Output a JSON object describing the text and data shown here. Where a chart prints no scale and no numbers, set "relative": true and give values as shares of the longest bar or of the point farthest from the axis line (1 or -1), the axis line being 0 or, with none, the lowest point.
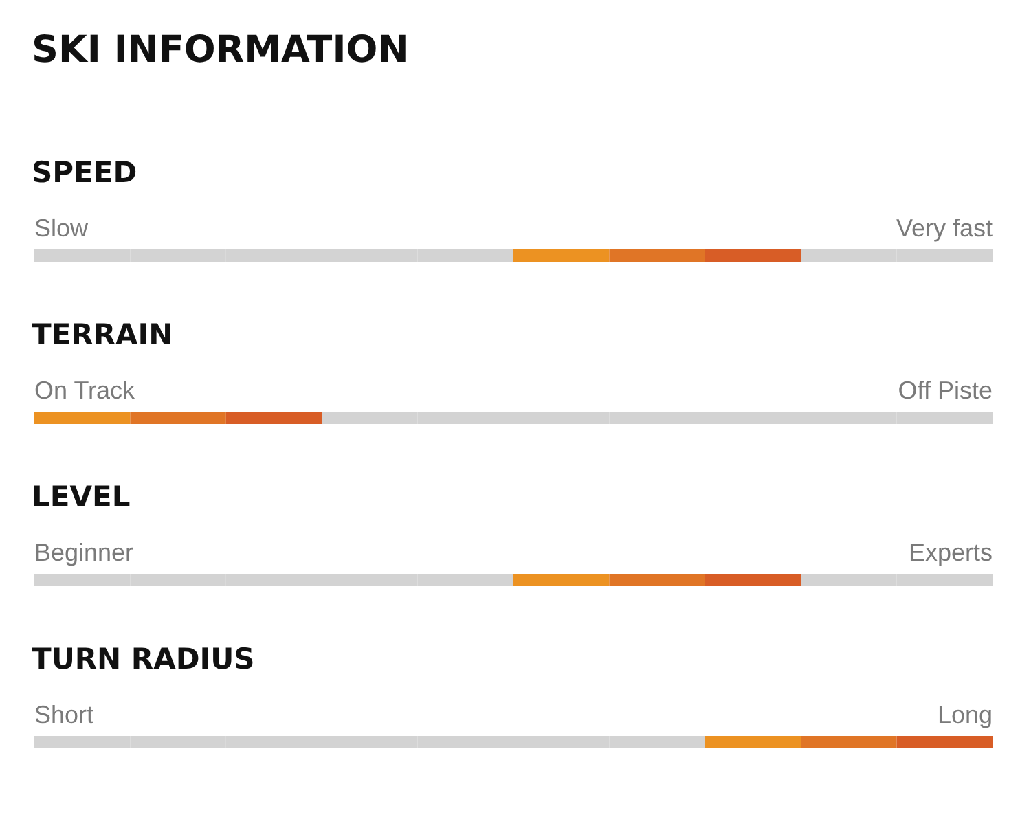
{
  "chart_data": [
    {
      "type": "other",
      "title": "SKI INFORMATION"
    },
    {
      "type": "bar",
      "orientation": "horizontal",
      "stacked": true,
      "relative": true,
      "title": "SPEED",
      "annotations": [
        "Slow",
        "Very fast"
      ],
      "categories": [
        null
      ],
      "series": [
        {
          "color": "#d3d3d3",
          "values": [
            0.1
          ]
        },
        {
          "color": "#d3d3d3",
          "values": [
            0.1
          ]
        },
        {
          "color": "#d3d3d3",
          "values": [
            0.1
          ]
        },
        {
          "color": "#d3d3d3",
          "values": [
            0.1
          ]
        },
        {
          "color": "#d3d3d3",
          "values": [
            0.1
          ]
        },
        {
          "color": "#ec9222",
          "values": [
            0.1
          ]
        },
        {
          "color": "#e07526",
          "values": [
            0.1
          ]
        },
        {
          "color": "#d85d26",
          "values": [
            0.1
          ]
        },
        {
          "color": "#d3d3d3",
          "values": [
            0.1
          ]
        },
        {
          "color": "#d3d3d3",
          "values": [
            0.1
          ]
        }
      ]
    },
    {
      "type": "bar",
      "orientation": "horizontal",
      "stacked": true,
      "relative": true,
      "title": "TERRAIN",
      "annotations": [
        "On Track",
        "Off Piste"
      ],
      "categories": [
        null
      ],
      "series": [
        {
          "color": "#ec9222",
          "values": [
            0.1
          ]
        },
        {
          "color": "#e07526",
          "values": [
            0.1
          ]
        },
        {
          "color": "#d85d26",
          "values": [
            0.1
          ]
        },
        {
          "color": "#d3d3d3",
          "values": [
            0.1
          ]
        },
        {
          "color": "#d3d3d3",
          "values": [
            0.1
          ]
        },
        {
          "color": "#d3d3d3",
          "values": [
            0.1
          ]
        },
        {
          "color": "#d3d3d3",
          "values": [
            0.1
          ]
        },
        {
          "color": "#d3d3d3",
          "values": [
            0.1
          ]
        },
        {
          "color": "#d3d3d3",
          "values": [
            0.1
          ]
        },
        {
          "color": "#d3d3d3",
          "values": [
            0.1
          ]
        }
      ]
    },
    {
      "type": "bar",
      "orientation": "horizontal",
      "stacked": true,
      "relative": true,
      "title": "LEVEL",
      "annotations": [
        "Beginner",
        "Experts"
      ],
      "categories": [
        null
      ],
      "series": [
        {
          "color": "#d3d3d3",
          "values": [
            0.1
          ]
        },
        {
          "color": "#d3d3d3",
          "values": [
            0.1
          ]
        },
        {
          "color": "#d3d3d3",
          "values": [
            0.1
          ]
        },
        {
          "color": "#d3d3d3",
          "values": [
            0.1
          ]
        },
        {
          "color": "#d3d3d3",
          "values": [
            0.1
          ]
        },
        {
          "color": "#ec9222",
          "values": [
            0.1
          ]
        },
        {
          "color": "#e07526",
          "values": [
            0.1
          ]
        },
        {
          "color": "#d85d26",
          "values": [
            0.1
          ]
        },
        {
          "color": "#d3d3d3",
          "values": [
            0.1
          ]
        },
        {
          "color": "#d3d3d3",
          "values": [
            0.1
          ]
        }
      ]
    },
    {
      "type": "bar",
      "orientation": "horizontal",
      "stacked": true,
      "relative": true,
      "title": "TURN RADIUS",
      "annotations": [
        "Short",
        "Long"
      ],
      "categories": [
        null
      ],
      "series": [
        {
          "color": "#d3d3d3",
          "values": [
            0.1
          ]
        },
        {
          "color": "#d3d3d3",
          "values": [
            0.1
          ]
        },
        {
          "color": "#d3d3d3",
          "values": [
            0.1
          ]
        },
        {
          "color": "#d3d3d3",
          "values": [
            0.1
          ]
        },
        {
          "color": "#d3d3d3",
          "values": [
            0.1
          ]
        },
        {
          "color": "#d3d3d3",
          "values": [
            0.1
          ]
        },
        {
          "color": "#d3d3d3",
          "values": [
            0.1
          ]
        },
        {
          "color": "#ec9222",
          "values": [
            0.1
          ]
        },
        {
          "color": "#e07526",
          "values": [
            0.1
          ]
        },
        {
          "color": "#d85d26",
          "values": [
            0.1
          ]
        }
      ]
    }
  ]
}
